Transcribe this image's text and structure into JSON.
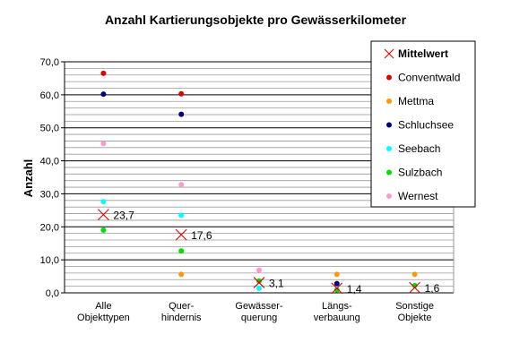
{
  "chart_data": {
    "type": "scatter",
    "title": "Anzahl Kartierungsobjekte pro Gewässerkilometer",
    "xlabel": "",
    "ylabel": "Anzahl",
    "ylim": [
      0,
      70
    ],
    "y_ticks": [
      "0,0",
      "10,0",
      "20,0",
      "30,0",
      "40,0",
      "50,0",
      "60,0",
      "70,0"
    ],
    "grid": true,
    "legend_position": "top-right",
    "categories": [
      [
        "Alle",
        "Objekttypen"
      ],
      [
        "Quer-",
        "hindernis"
      ],
      [
        "Gewässer-",
        "querung"
      ],
      [
        "Längs-",
        "verbauung"
      ],
      [
        "Sonstige",
        "Objekte"
      ]
    ],
    "mean": {
      "name": "Mittelwert",
      "color": "#e00000",
      "values": [
        23.7,
        17.6,
        3.1,
        1.4,
        1.6
      ],
      "labels": [
        "23,7",
        "17,6",
        "3,1",
        "1,4",
        "1,6"
      ]
    },
    "series": [
      {
        "name": "Conventwald",
        "color": "#e00000",
        "values": [
          66.5,
          60.3,
          null,
          null,
          null
        ]
      },
      {
        "name": "Mettma",
        "color": "#ff9900",
        "values": [
          null,
          5.6,
          null,
          5.6,
          5.6
        ]
      },
      {
        "name": "Schluchsee",
        "color": "#00007f",
        "values": [
          60.2,
          54.1,
          null,
          2.8,
          null
        ]
      },
      {
        "name": "Seebach",
        "color": "#00ffff",
        "values": [
          27.6,
          23.5,
          1.4,
          null,
          null
        ]
      },
      {
        "name": "Sulzbach",
        "color": "#00e000",
        "values": [
          19.0,
          12.7,
          3.6,
          0.9,
          2.2
        ]
      },
      {
        "name": "Wernest",
        "color": "#ff99cc",
        "values": [
          45.2,
          32.8,
          6.9,
          null,
          null
        ]
      }
    ]
  }
}
